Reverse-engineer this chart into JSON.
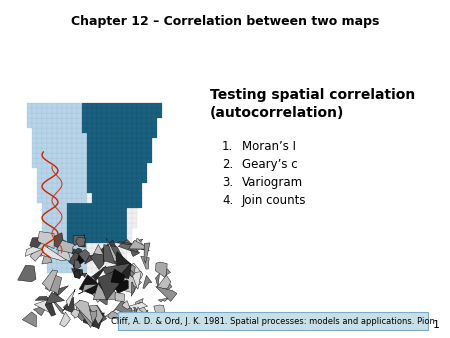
{
  "title": "Chapter 12 – Correlation between two maps",
  "title_fontsize": 9,
  "title_fontweight": "bold",
  "heading": "Testing spatial correlation\n(autocorrelation)",
  "heading_fontsize": 10,
  "heading_fontweight": "bold",
  "list_items": [
    "Moran’s I",
    "Geary’s c",
    "Variogram",
    "Join counts"
  ],
  "list_fontsize": 8.5,
  "footnote": "Cliff, A. D. & Ord, J. K. 1981. Spatial processes: models and applications. Pion",
  "footnote_fontsize": 6,
  "footnote_bg": "#c8dfe8",
  "footnote_border": "#7aabcc",
  "page_number": "1",
  "slide_bg": "#ffffff",
  "teal_color": "#1a6080",
  "light_blue_color": "#b8d4e8",
  "red_color": "#cc2200",
  "grid_color": "#cccccc"
}
